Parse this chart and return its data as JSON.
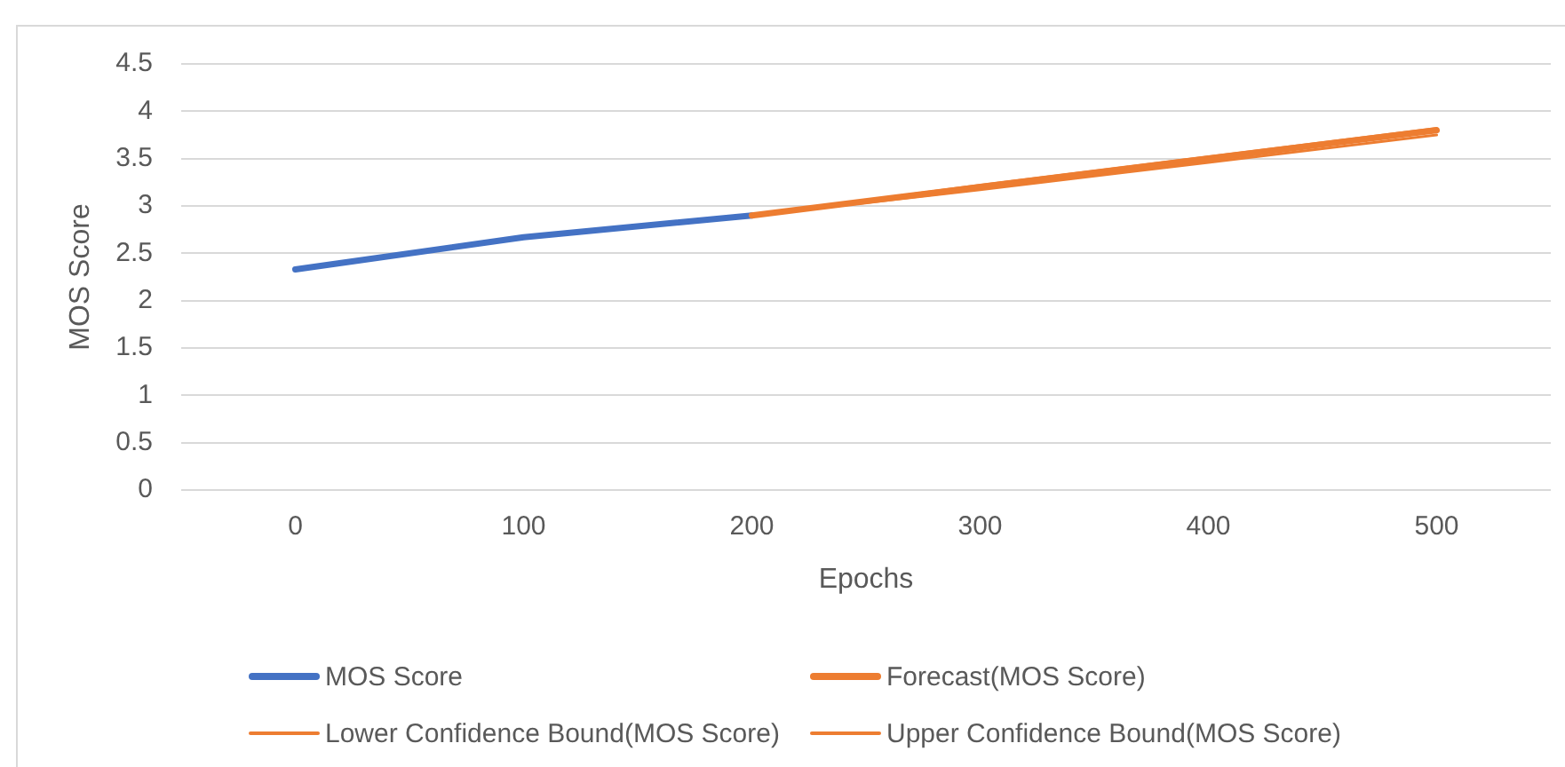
{
  "chart_data": {
    "type": "line",
    "xlabel": "Epochs",
    "ylabel": "MOS Score",
    "categories": [
      "0",
      "100",
      "200",
      "300",
      "400",
      "500"
    ],
    "series": [
      {
        "name": "MOS Score",
        "color": "#4472c4",
        "values": [
          2.33,
          2.67,
          2.9,
          null,
          null,
          null
        ]
      },
      {
        "name": "Forecast(MOS Score)",
        "color": "#ed7d31",
        "values": [
          null,
          null,
          2.9,
          3.2,
          3.5,
          3.8
        ]
      },
      {
        "name": "Lower Confidence Bound(MOS Score)",
        "color": "#ed7d31",
        "values": [
          null,
          null,
          2.9,
          3.17,
          3.46,
          3.75
        ]
      },
      {
        "name": "Upper Confidence Bound(MOS Score)",
        "color": "#ed7d31",
        "values": [
          null,
          null,
          2.9,
          3.22,
          3.52,
          3.82
        ]
      }
    ],
    "ylim": [
      0,
      4.5
    ],
    "yticks": [
      0,
      0.5,
      1,
      1.5,
      2,
      2.5,
      3,
      3.5,
      4,
      4.5
    ],
    "grid": "y",
    "legend": "bottom",
    "marker": "none",
    "line_style": "solid"
  }
}
